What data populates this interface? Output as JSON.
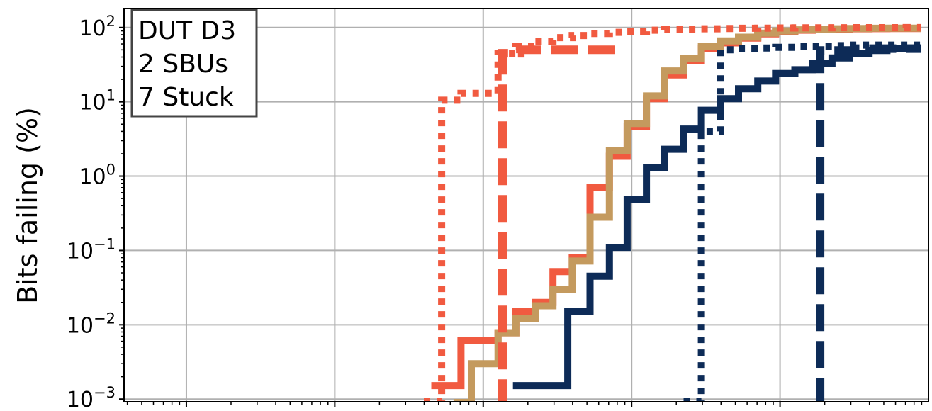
{
  "chart_data": {
    "type": "line",
    "title": "",
    "xlabel": "",
    "ylabel": "Bits failing (%)",
    "yscale": "log",
    "xscale": "log",
    "ylim": [
      0.00092,
      180
    ],
    "xlim_decades": [
      -0.42,
      5.0
    ],
    "grid": true,
    "annotation": {
      "lines": [
        "DUT D3",
        "2 SBUs",
        "7 Stuck"
      ],
      "placement": "top-left"
    },
    "y_ticks": [
      {
        "base": "10",
        "exp": "2",
        "value": 100
      },
      {
        "base": "10",
        "exp": "1",
        "value": 10
      },
      {
        "base": "10",
        "exp": "0",
        "value": 1
      },
      {
        "base": "10",
        "exp": "−1",
        "value": 0.1
      },
      {
        "base": "10",
        "exp": "−2",
        "value": 0.01
      },
      {
        "base": "10",
        "exp": "−3",
        "value": 0.001
      }
    ],
    "x_major_decades": [
      0,
      1,
      2,
      3,
      4
    ],
    "series": [
      {
        "color": "#f15a40",
        "style": "solid",
        "width": 10,
        "x": [
          1.65,
          1.85,
          2.1,
          2.22,
          2.35,
          2.47,
          2.6,
          2.72,
          2.85,
          2.97,
          3.1,
          3.22,
          3.35,
          3.47,
          3.6,
          3.72,
          3.85,
          3.97,
          4.1,
          4.22,
          4.35,
          4.47,
          4.6,
          4.72,
          4.85,
          4.95
        ],
        "y": [
          0.00152,
          0.0062,
          0.0078,
          0.0152,
          0.02,
          0.052,
          0.08,
          0.7,
          1.85,
          4.6,
          11,
          23,
          36,
          52,
          62,
          72,
          82,
          88,
          92,
          94,
          95,
          96,
          96.5,
          97,
          97,
          97
        ]
      },
      {
        "color": "#c49a5e",
        "style": "solid",
        "width": 10,
        "x": [
          1.8,
          1.92,
          2.1,
          2.22,
          2.35,
          2.47,
          2.6,
          2.72,
          2.85,
          2.97,
          3.1,
          3.22,
          3.35,
          3.47,
          3.6,
          3.72,
          3.85,
          3.97,
          4.1,
          4.22,
          4.35,
          4.47,
          4.6,
          4.72,
          4.85,
          4.95
        ],
        "y": [
          0.0009,
          0.003,
          0.0078,
          0.012,
          0.018,
          0.03,
          0.072,
          0.28,
          2.2,
          5.1,
          12,
          26,
          38,
          55,
          66,
          74,
          84,
          90,
          93,
          95,
          96,
          97,
          97.5,
          98,
          98,
          98
        ]
      },
      {
        "color": "#0d2b57",
        "style": "solid",
        "width": 10,
        "x": [
          2.2,
          2.57,
          2.72,
          2.85,
          2.97,
          3.1,
          3.22,
          3.35,
          3.47,
          3.6,
          3.72,
          3.85,
          3.97,
          4.1,
          4.22,
          4.35,
          4.47,
          4.6,
          4.72,
          4.85,
          4.95
        ],
        "y": [
          0.00152,
          0.015,
          0.045,
          0.11,
          0.48,
          1.3,
          2.3,
          4.3,
          7.7,
          11,
          15,
          19,
          24,
          27,
          33,
          39,
          45,
          49,
          52,
          53,
          53
        ]
      },
      {
        "color": "#f15a40",
        "style": "dotted",
        "width": 10,
        "x": [
          1.6,
          1.72,
          1.85,
          2.1,
          2.22,
          2.35,
          2.47,
          2.6,
          2.72,
          2.85,
          2.97,
          3.1,
          3.22,
          3.35,
          3.47,
          3.6,
          3.72,
          3.85,
          3.97,
          4.1,
          4.22,
          4.35,
          4.47,
          4.6,
          4.72,
          4.85,
          4.95
        ],
        "y": [
          0.00092,
          10.5,
          13,
          45,
          55,
          65,
          73,
          78,
          83,
          86,
          89,
          92,
          94,
          95,
          96,
          97,
          97.5,
          98,
          98.5,
          99,
          99,
          99.2,
          99.4,
          99.5,
          99.6,
          99.7,
          99.7
        ]
      },
      {
        "color": "#f15a40",
        "style": "dashed",
        "width": 12,
        "x": [
          2.1,
          2.13,
          2.25,
          2.95
        ],
        "y": [
          0.00092,
          45,
          50,
          50
        ]
      },
      {
        "color": "#0d2b57",
        "style": "dotted",
        "width": 10,
        "x": [
          3.35,
          3.47,
          3.6,
          3.72,
          3.85,
          3.97,
          4.1,
          4.22,
          4.35,
          4.47,
          4.6,
          4.72,
          4.85,
          4.95
        ],
        "y": [
          0.00092,
          4,
          50,
          52,
          53,
          54,
          55,
          56,
          57,
          58,
          58,
          58,
          58,
          58
        ]
      },
      {
        "color": "#0d2b57",
        "style": "dashed",
        "width": 12,
        "x": [
          4.25,
          4.27,
          4.5,
          4.95
        ],
        "y": [
          0.00092,
          49,
          52,
          52
        ]
      }
    ]
  }
}
